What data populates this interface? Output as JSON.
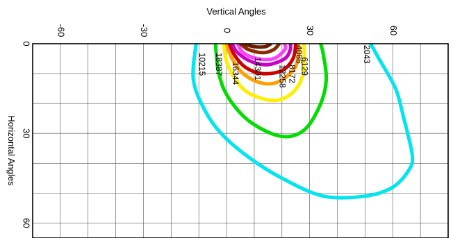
{
  "chart_data": {
    "type": "contour",
    "xlabel": "Vertical Angles",
    "ylabel": "Horizontal Angles",
    "xlim": [
      -70,
      80
    ],
    "ylim": [
      0,
      65
    ],
    "x_reversed": false,
    "y_reversed": true,
    "x_ticks": [
      {
        "value": -60,
        "label": "-60"
      },
      {
        "value": -30,
        "label": "-30"
      },
      {
        "value": 0,
        "label": "0"
      },
      {
        "value": 30,
        "label": "30"
      },
      {
        "value": 60,
        "label": "60"
      }
    ],
    "y_ticks": [
      {
        "value": 0,
        "label": "0"
      },
      {
        "value": 30,
        "label": "30"
      },
      {
        "value": 60,
        "label": "60"
      }
    ],
    "grid": true,
    "contours": [
      {
        "level": 2043,
        "label": "2043",
        "color": "#00e5ef",
        "points": [
          [
            -11,
            0
          ],
          [
            -12,
            12
          ],
          [
            -8,
            22
          ],
          [
            -2,
            30
          ],
          [
            8,
            38
          ],
          [
            20,
            45
          ],
          [
            35,
            51
          ],
          [
            50,
            51
          ],
          [
            60,
            48
          ],
          [
            66,
            42
          ],
          [
            67,
            37
          ],
          [
            64,
            25
          ],
          [
            61,
            15
          ],
          [
            55,
            5
          ],
          [
            52,
            0
          ]
        ]
      },
      {
        "level": 4086,
        "label": "4086",
        "color": "#00dd00",
        "points": [
          [
            -4,
            0
          ],
          [
            -3,
            9
          ],
          [
            0,
            17
          ],
          [
            7,
            25
          ],
          [
            16,
            30
          ],
          [
            23,
            31
          ],
          [
            29,
            28
          ],
          [
            34,
            20
          ],
          [
            36,
            12
          ],
          [
            35,
            4
          ],
          [
            34,
            0
          ]
        ]
      },
      {
        "level": 6129,
        "label": "6129",
        "color": "#ffee00",
        "points": [
          [
            -1,
            0
          ],
          [
            0,
            6
          ],
          [
            4,
            13
          ],
          [
            9,
            17
          ],
          [
            17,
            19
          ],
          [
            23,
            17
          ],
          [
            27,
            12
          ],
          [
            28,
            5
          ],
          [
            28,
            0
          ]
        ]
      },
      {
        "level": 8172,
        "label": "8172",
        "color": "#ffa000",
        "points": [
          [
            0,
            0
          ],
          [
            2,
            5
          ],
          [
            6,
            10
          ],
          [
            12,
            13
          ],
          [
            18,
            13
          ],
          [
            24,
            9
          ],
          [
            26,
            4
          ],
          [
            26,
            0
          ]
        ]
      },
      {
        "level": 10215,
        "label": "10215",
        "color": "#d00000",
        "points": [
          [
            1,
            0
          ],
          [
            3,
            4
          ],
          [
            7,
            8
          ],
          [
            13,
            10
          ],
          [
            20,
            9
          ],
          [
            24,
            5
          ],
          [
            25,
            0
          ]
        ]
      },
      {
        "level": 12258,
        "label": "12258",
        "color": "#c800c8",
        "points": [
          [
            2,
            0
          ],
          [
            4,
            3
          ],
          [
            9,
            6
          ],
          [
            15,
            7
          ],
          [
            21,
            5
          ],
          [
            23,
            2
          ],
          [
            23,
            0
          ]
        ]
      },
      {
        "level": 14301,
        "label": "14301",
        "color": "#ff40ff",
        "points": [
          [
            4,
            0
          ],
          [
            6,
            3
          ],
          [
            11,
            5
          ],
          [
            17,
            5
          ],
          [
            21,
            2
          ],
          [
            21,
            0
          ]
        ]
      },
      {
        "level": 16344,
        "label": "16344",
        "color": "#8b2a00",
        "points": [
          [
            5,
            0
          ],
          [
            8,
            2
          ],
          [
            13,
            3
          ],
          [
            17,
            2
          ],
          [
            19,
            0
          ]
        ]
      },
      {
        "level": 18387,
        "label": "18387",
        "color": "#6b1f00",
        "points": [
          [
            6,
            0
          ],
          [
            10,
            1
          ],
          [
            14,
            1
          ],
          [
            16,
            0
          ]
        ]
      }
    ],
    "labels": [
      {
        "text": "2043",
        "x": 50.5,
        "y": 0.5
      },
      {
        "text": "4086",
        "x": 26,
        "y": 0.5
      },
      {
        "text": "6129",
        "x": 28,
        "y": 4.5
      },
      {
        "text": "8172",
        "x": 23.5,
        "y": 7
      },
      {
        "text": "12258",
        "x": 20,
        "y": 7
      },
      {
        "text": "14301",
        "x": 11,
        "y": 4.5
      },
      {
        "text": "16344",
        "x": 3,
        "y": 6
      },
      {
        "text": "18387",
        "x": -3,
        "y": 3
      },
      {
        "text": "10215",
        "x": -9,
        "y": 3
      }
    ]
  }
}
